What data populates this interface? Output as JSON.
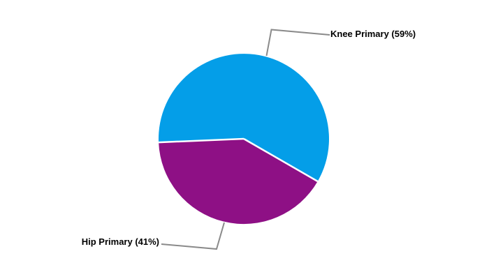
{
  "chart_data": {
    "type": "pie",
    "title": "",
    "slices": [
      {
        "label": "Knee Primary",
        "value": 59,
        "unit": "%",
        "display": "Knee Primary (59%)",
        "color": "#049EE8"
      },
      {
        "label": "Hip Primary",
        "value": 41,
        "unit": "%",
        "display": "Hip Primary (41%)",
        "color": "#8E1085"
      }
    ],
    "total": 100,
    "start_angle_screen_deg": 177.6,
    "direction": "clockwise",
    "legend_position": "none",
    "label_style": "callout-leader-lines",
    "separator_color": "#FFFFFF",
    "leader_line_color": "#8A8A8A",
    "label_text_color": "#000000",
    "background": "#FFFFFF"
  }
}
